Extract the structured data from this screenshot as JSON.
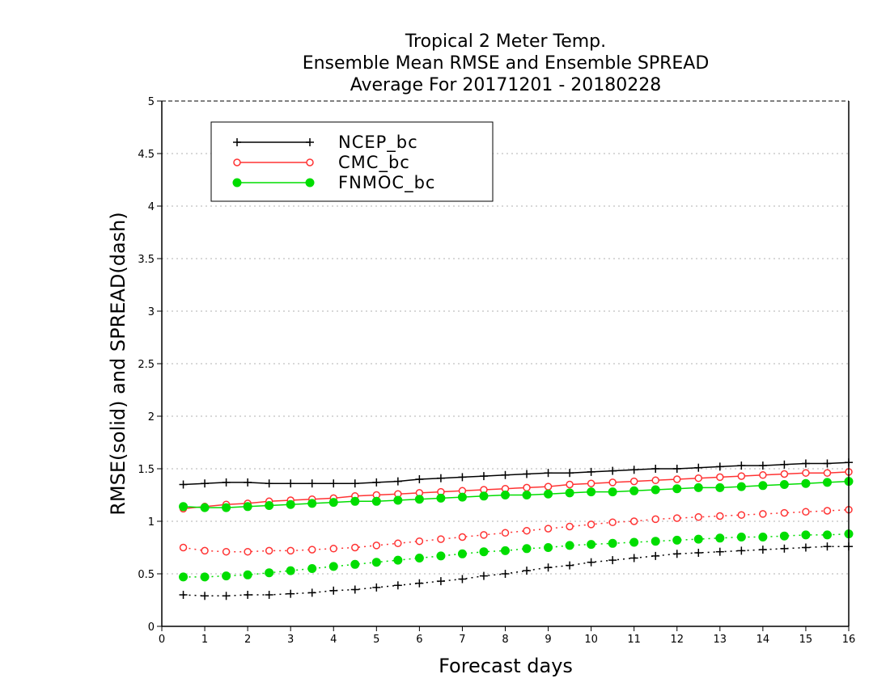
{
  "chart_data": {
    "type": "line",
    "title": [
      "Tropical 2 Meter Temp.",
      "Ensemble Mean RMSE and Ensemble SPREAD",
      "Average For 20171201 - 20180228"
    ],
    "xlabel": "Forecast days",
    "ylabel": "RMSE(solid) and SPREAD(dash)",
    "xlim": [
      0,
      16
    ],
    "ylim": [
      0,
      5
    ],
    "xticks": [
      "0",
      "1",
      "2",
      "3",
      "4",
      "5",
      "6",
      "7",
      "8",
      "9",
      "10",
      "11",
      "12",
      "13",
      "14",
      "15",
      "16"
    ],
    "yticks": [
      "0",
      "0.5",
      "1",
      "1.5",
      "2",
      "2.5",
      "3",
      "3.5",
      "4",
      "4.5",
      "5"
    ],
    "grid": "horizontal dotted",
    "legend_position": "top-left",
    "x": [
      0.5,
      1,
      1.5,
      2,
      2.5,
      3,
      3.5,
      4,
      4.5,
      5,
      5.5,
      6,
      6.5,
      7,
      7.5,
      8,
      8.5,
      9,
      9.5,
      10,
      10.5,
      11,
      11.5,
      12,
      12.5,
      13,
      13.5,
      14,
      14.5,
      15,
      15.5,
      16
    ],
    "series": [
      {
        "name": "NCEP_bc",
        "color": "#000000",
        "marker": "plus",
        "rmse": [
          1.35,
          1.36,
          1.37,
          1.37,
          1.36,
          1.36,
          1.36,
          1.36,
          1.36,
          1.37,
          1.38,
          1.4,
          1.41,
          1.42,
          1.43,
          1.44,
          1.45,
          1.46,
          1.46,
          1.47,
          1.48,
          1.49,
          1.5,
          1.5,
          1.51,
          1.52,
          1.53,
          1.53,
          1.54,
          1.55,
          1.55,
          1.56
        ],
        "spread": [
          0.3,
          0.29,
          0.29,
          0.3,
          0.3,
          0.31,
          0.32,
          0.34,
          0.35,
          0.37,
          0.39,
          0.41,
          0.43,
          0.45,
          0.48,
          0.5,
          0.53,
          0.56,
          0.58,
          0.61,
          0.63,
          0.65,
          0.67,
          0.69,
          0.7,
          0.71,
          0.72,
          0.73,
          0.74,
          0.75,
          0.76,
          0.76
        ]
      },
      {
        "name": "CMC_bc",
        "color": "#ff3333",
        "marker": "open-circle",
        "rmse": [
          1.12,
          1.14,
          1.16,
          1.17,
          1.19,
          1.2,
          1.21,
          1.22,
          1.24,
          1.25,
          1.26,
          1.27,
          1.28,
          1.29,
          1.3,
          1.31,
          1.32,
          1.33,
          1.35,
          1.36,
          1.37,
          1.38,
          1.39,
          1.4,
          1.41,
          1.42,
          1.43,
          1.44,
          1.45,
          1.46,
          1.46,
          1.47
        ],
        "spread": [
          0.75,
          0.72,
          0.71,
          0.71,
          0.72,
          0.72,
          0.73,
          0.74,
          0.75,
          0.77,
          0.79,
          0.81,
          0.83,
          0.85,
          0.87,
          0.89,
          0.91,
          0.93,
          0.95,
          0.97,
          0.99,
          1.0,
          1.02,
          1.03,
          1.04,
          1.05,
          1.06,
          1.07,
          1.08,
          1.09,
          1.1,
          1.11
        ]
      },
      {
        "name": "FNMOC_bc",
        "color": "#00dd00",
        "marker": "filled-circle",
        "rmse": [
          1.14,
          1.13,
          1.13,
          1.14,
          1.15,
          1.16,
          1.17,
          1.18,
          1.19,
          1.19,
          1.2,
          1.21,
          1.22,
          1.23,
          1.24,
          1.25,
          1.25,
          1.26,
          1.27,
          1.28,
          1.28,
          1.29,
          1.3,
          1.31,
          1.32,
          1.32,
          1.33,
          1.34,
          1.35,
          1.36,
          1.37,
          1.38
        ],
        "spread": [
          0.47,
          0.47,
          0.48,
          0.49,
          0.51,
          0.53,
          0.55,
          0.57,
          0.59,
          0.61,
          0.63,
          0.65,
          0.67,
          0.69,
          0.71,
          0.72,
          0.74,
          0.75,
          0.77,
          0.78,
          0.79,
          0.8,
          0.81,
          0.82,
          0.83,
          0.84,
          0.85,
          0.85,
          0.86,
          0.87,
          0.87,
          0.88
        ]
      }
    ]
  }
}
